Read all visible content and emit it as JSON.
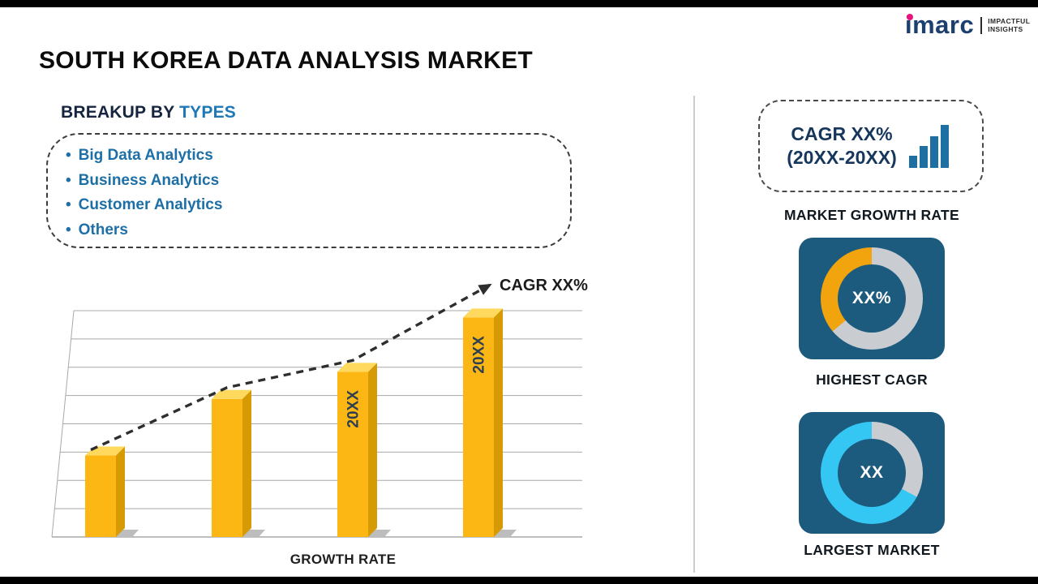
{
  "page": {
    "title": "SOUTH KOREA DATA ANALYSIS MARKET"
  },
  "logo": {
    "brand": "imarc",
    "tagline_line1": "IMPACTFUL",
    "tagline_line2": "INSIGHTS",
    "brand_color": "#1c3f6e",
    "accent_color": "#e5147e"
  },
  "breakup": {
    "heading_prefix": "BREAKUP BY ",
    "heading_highlight": "TYPES",
    "items": [
      "Big Data Analytics",
      "Business Analytics",
      "Customer Analytics",
      "Others"
    ]
  },
  "chart_data": [
    {
      "type": "bar",
      "title": "GROWTH RATE",
      "xlabel": "GROWTH RATE",
      "ylabel": "",
      "categories": [
        "",
        "",
        "20XX",
        "20XX"
      ],
      "values": [
        36,
        61,
        73,
        97
      ],
      "ylim": [
        0,
        100
      ],
      "grid": true,
      "style": "3d-gold-bars",
      "trend_label": "CAGR XX%",
      "trend": "dashed-arrow-up",
      "colors": {
        "face": "#fcb715",
        "side": "#d69b04",
        "top": "#ffd95e",
        "label": "#2c3e50",
        "grid": "#a8a8a8",
        "arrow": "#2e2e2e"
      }
    },
    {
      "type": "donut",
      "label": "HIGHEST CAGR",
      "center_text": "XX%",
      "segments": [
        {
          "color": "#c9cdd2",
          "from": 0,
          "to": 230
        },
        {
          "color": "#f1a40e",
          "from": 230,
          "to": 360
        }
      ]
    },
    {
      "type": "donut",
      "label": "LARGEST MARKET",
      "center_text": "XX",
      "segments": [
        {
          "color": "#c9cdd2",
          "from": 0,
          "to": 118
        },
        {
          "color": "#35c7f4",
          "from": 118,
          "to": 360
        }
      ]
    }
  ],
  "sidebar": {
    "growth_box": {
      "line1": "CAGR XX%",
      "line2": "(20XX-20XX)",
      "label": "MARKET GROWTH RATE"
    }
  },
  "colors": {
    "card_bg": "#1d5b7e",
    "heading_blue": "#1f78b6",
    "bullet_blue": "#1d6fa6",
    "icon_blue": "#1e6fa2"
  }
}
